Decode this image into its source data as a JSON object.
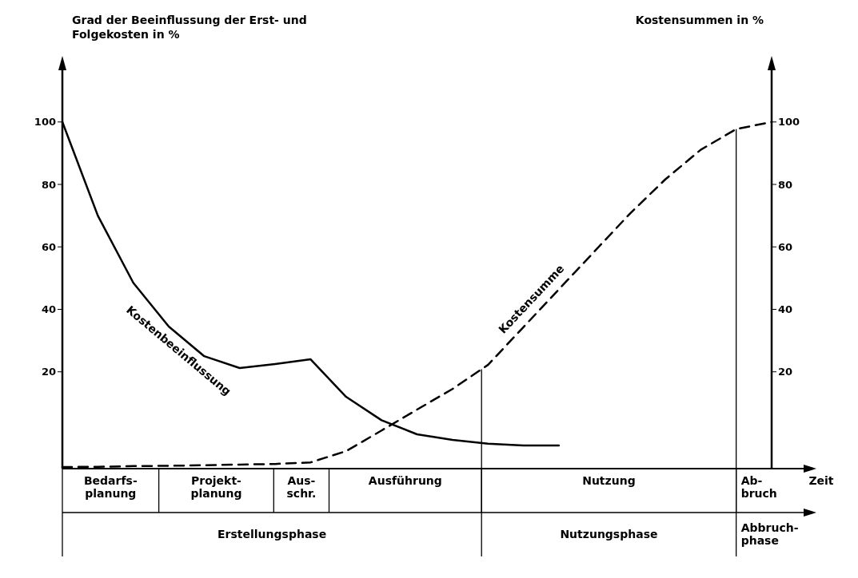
{
  "chart_data": {
    "type": "line",
    "xlabel": "Zeit",
    "ylabel": "Grad der Beeinflussung der Erst- und Folgekosten in %",
    "y2label": "Kostensummen in %",
    "categories": [
      null,
      null,
      null,
      null,
      null,
      null,
      null,
      null,
      null,
      null,
      null,
      null,
      null,
      null,
      null,
      null,
      null,
      null,
      null,
      null,
      null
    ],
    "ylim": [
      -11,
      114
    ],
    "yticks": [
      20,
      40,
      60,
      80,
      100
    ],
    "y2lim": [
      -11,
      114
    ],
    "y2ticks": [
      20,
      40,
      60,
      80,
      100
    ],
    "grid": false,
    "legend": false,
    "marker": "none",
    "series": [
      {
        "name": "Kostenbeeinflussung",
        "color": "#000000",
        "line_style": "solid",
        "values": [
          100,
          70,
          48.5,
          34.5,
          25,
          21.2,
          22.5,
          24,
          12,
          4.5,
          0,
          -1.8,
          -3,
          -3.6,
          -3.6,
          null,
          null,
          null,
          null,
          null,
          null
        ]
      },
      {
        "name": "Kostensumme",
        "color": "#000000",
        "line_style": "dashed",
        "values": [
          -10.5,
          -10.4,
          -10.2,
          -10.1,
          -9.9,
          -9.7,
          -9.5,
          -9,
          -5.4,
          1.2,
          7.9,
          14.5,
          22.2,
          34.3,
          46.4,
          58.5,
          70.6,
          81.6,
          91.1,
          97.7,
          100
        ]
      }
    ],
    "annotations": [
      "Bedarfs-\nplanung",
      "Projekt-\nplanung",
      "Aus-\nschr.",
      "Ausführung",
      "Nutzung",
      "Ab-\nbruch",
      "Erstellungsphase",
      "Nutzungsphase",
      "Abbruch-\nphase"
    ]
  }
}
